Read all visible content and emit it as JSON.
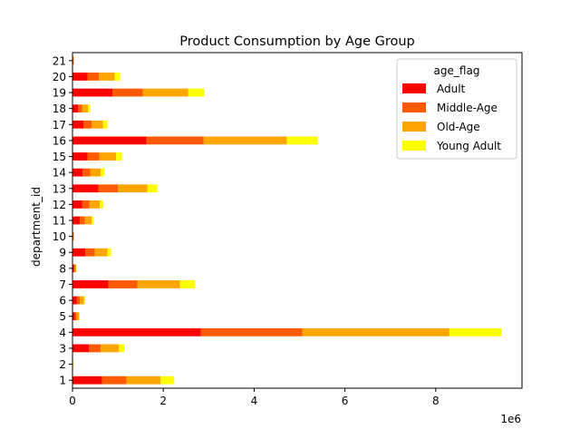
{
  "chart_data": {
    "type": "bar",
    "orientation": "horizontal",
    "stacked": true,
    "title": "Product Consumption by Age Group",
    "ylabel": "department_id",
    "xlabel": "",
    "x_offset_label": "1e6",
    "x_ticks": [
      0,
      2,
      4,
      6,
      8
    ],
    "xlim": [
      0,
      9.9
    ],
    "categories": [
      "1",
      "2",
      "3",
      "4",
      "5",
      "6",
      "7",
      "8",
      "9",
      "10",
      "11",
      "12",
      "13",
      "14",
      "15",
      "16",
      "17",
      "18",
      "19",
      "20",
      "21"
    ],
    "legend": {
      "title": "age_flag",
      "placement": "top-right"
    },
    "series": [
      {
        "name": "Adult",
        "color": "#ff0000",
        "values": [
          0.65,
          0.005,
          0.36,
          2.83,
          0.05,
          0.09,
          0.79,
          0.03,
          0.28,
          0.01,
          0.16,
          0.21,
          0.57,
          0.22,
          0.33,
          1.63,
          0.24,
          0.12,
          0.88,
          0.33,
          0.01
        ]
      },
      {
        "name": "Middle-Age",
        "color": "#ff5a00",
        "values": [
          0.54,
          0.005,
          0.26,
          2.23,
          0.04,
          0.07,
          0.64,
          0.02,
          0.21,
          0.01,
          0.11,
          0.16,
          0.43,
          0.17,
          0.26,
          1.26,
          0.18,
          0.09,
          0.67,
          0.25,
          0.01
        ]
      },
      {
        "name": "Old-Age",
        "color": "#ffa500",
        "values": [
          0.75,
          0.005,
          0.4,
          3.24,
          0.05,
          0.09,
          0.94,
          0.03,
          0.28,
          0.01,
          0.15,
          0.23,
          0.65,
          0.23,
          0.37,
          1.83,
          0.25,
          0.13,
          1.0,
          0.35,
          0.01
        ]
      },
      {
        "name": "Young Adult",
        "color": "#ffff00",
        "values": [
          0.3,
          0.005,
          0.12,
          1.15,
          0.02,
          0.03,
          0.33,
          0.01,
          0.08,
          0.005,
          0.04,
          0.08,
          0.22,
          0.08,
          0.13,
          0.68,
          0.1,
          0.05,
          0.35,
          0.12,
          0.005
        ]
      }
    ]
  }
}
